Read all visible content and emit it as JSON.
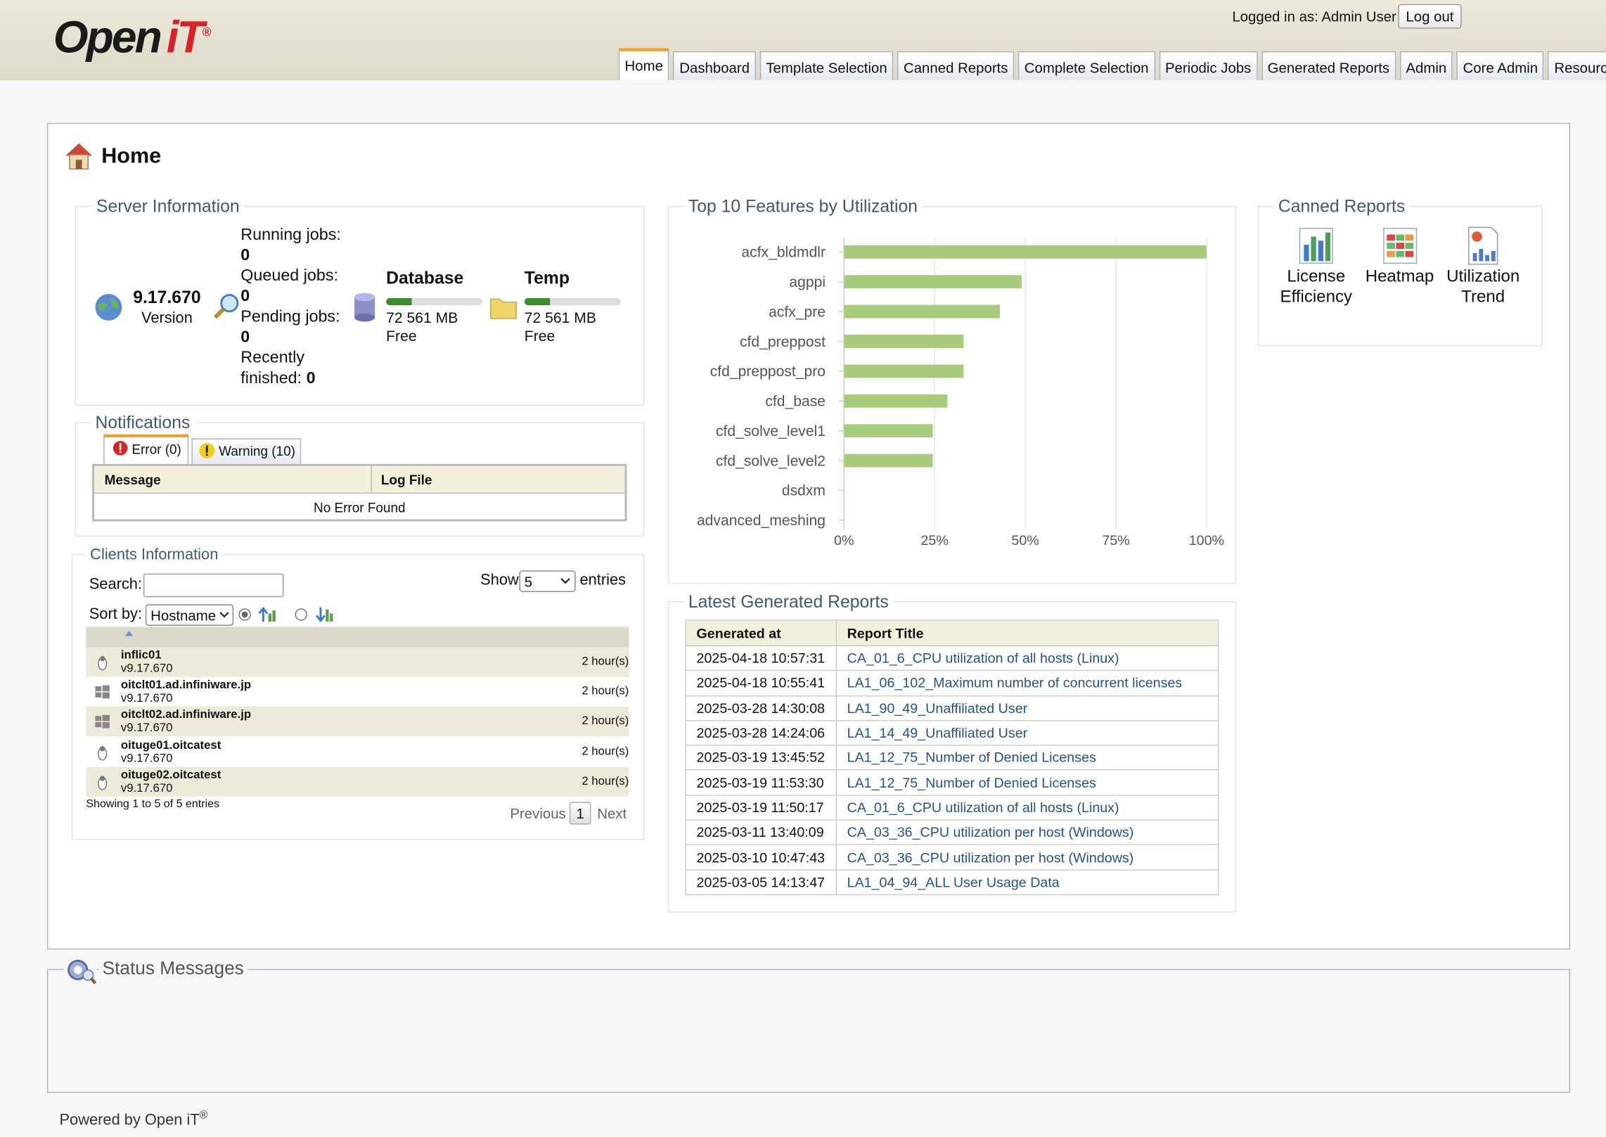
{
  "header": {
    "logo": {
      "word": "Open",
      "mark": "iT",
      "registered": "®"
    },
    "logged_in_as": "Logged in as: Admin User",
    "logout": "Log out",
    "tabs": [
      "Home",
      "Dashboard",
      "Template Selection",
      "Canned Reports",
      "Complete Selection",
      "Periodic Jobs",
      "Generated Reports",
      "Admin",
      "Core Admin",
      "Resources"
    ],
    "active_tab": 0
  },
  "page_title": "Home",
  "server_info": {
    "legend": "Server Information",
    "version": "9.17.670",
    "version_label": "Version",
    "jobs": [
      {
        "label": "Running jobs:",
        "value": 0
      },
      {
        "label": "Queued jobs:",
        "value": 0
      },
      {
        "label": "Pending jobs:",
        "value": 0
      },
      {
        "label": "Recently finished:",
        "value": 0
      }
    ],
    "storage": [
      {
        "name": "Database",
        "size": "72 561 MB",
        "free": "Free",
        "fill_percent": 27
      },
      {
        "name": "Temp",
        "size": "72 561 MB",
        "free": "Free",
        "fill_percent": 27
      }
    ]
  },
  "notifications": {
    "legend": "Notifications",
    "tabs": [
      "Error (0)",
      "Warning (10)"
    ],
    "columns": [
      "Message",
      "Log File"
    ],
    "empty": "No Error Found"
  },
  "clients": {
    "legend": "Clients Information",
    "search": "Search:",
    "show": "Show",
    "show_value": "5",
    "entries": "entries",
    "sort_by": "Sort by:",
    "sort_field": "Hostname",
    "rows": [
      {
        "host": "inflic01",
        "version": "v9.17.670",
        "ago": "2 hour(s)",
        "os": "linux"
      },
      {
        "host": "oitclt01.ad.infiniware.jp",
        "version": "v9.17.670",
        "ago": "2 hour(s)",
        "os": "windows"
      },
      {
        "host": "oitclt02.ad.infiniware.jp",
        "version": "v9.17.670",
        "ago": "2 hour(s)",
        "os": "windows"
      },
      {
        "host": "oituge01.oitcatest",
        "version": "v9.17.670",
        "ago": "2 hour(s)",
        "os": "linux"
      },
      {
        "host": "oituge02.oitcatest",
        "version": "v9.17.670",
        "ago": "2 hour(s)",
        "os": "linux"
      }
    ],
    "info": "Showing 1 to 5 of 5 entries",
    "previous": "Previous",
    "page": "1",
    "next": "Next"
  },
  "chart_data": {
    "type": "bar",
    "orientation": "horizontal",
    "title": "Top 10 Features by Utilization",
    "categories": [
      "acfx_bldmdlr",
      "agppi",
      "acfx_pre",
      "cfd_preppost",
      "cfd_preppost_pro",
      "cfd_base",
      "cfd_solve_level1",
      "cfd_solve_level2",
      "dsdxm",
      "advanced_meshing"
    ],
    "values": [
      100,
      49,
      43,
      33,
      33,
      28.5,
      24.5,
      24.5,
      0,
      0
    ],
    "color": "#a8cc7c",
    "xlim": [
      0,
      100
    ],
    "xticks": [
      {
        "value": 0,
        "label": "0%"
      },
      {
        "value": 25,
        "label": "25%"
      },
      {
        "value": 50,
        "label": "50%"
      },
      {
        "value": 75,
        "label": "75%"
      },
      {
        "value": 100,
        "label": "100%"
      }
    ],
    "grid": true
  },
  "reports": {
    "legend": "Latest Generated Reports",
    "columns": [
      "Generated at",
      "Report Title"
    ],
    "rows": [
      [
        "2025-04-18 10:57:31",
        "CA_01_6_CPU utilization of all hosts (Linux)"
      ],
      [
        "2025-04-18 10:55:41",
        "LA1_06_102_Maximum number of concurrent licenses"
      ],
      [
        "2025-03-28 14:30:08",
        "LA1_90_49_Unaffiliated User"
      ],
      [
        "2025-03-28 14:24:06",
        "LA1_14_49_Unaffiliated User"
      ],
      [
        "2025-03-19 13:45:52",
        "LA1_12_75_Number of Denied Licenses"
      ],
      [
        "2025-03-19 11:53:30",
        "LA1_12_75_Number of Denied Licenses"
      ],
      [
        "2025-03-19 11:50:17",
        "CA_01_6_CPU utilization of all hosts (Linux)"
      ],
      [
        "2025-03-11 13:40:09",
        "CA_03_36_CPU utilization per host (Windows)"
      ],
      [
        "2025-03-10 10:47:43",
        "CA_03_36_CPU utilization per host (Windows)"
      ],
      [
        "2025-03-05 14:13:47",
        "LA1_04_94_ALL User Usage Data"
      ]
    ]
  },
  "canned": {
    "legend": "Canned Reports",
    "items": [
      "License Efficiency",
      "Heatmap",
      "Utilization Trend"
    ]
  },
  "status": {
    "legend": "Status Messages"
  },
  "footer": {
    "text": "Powered by Open iT",
    "registered": "®"
  }
}
